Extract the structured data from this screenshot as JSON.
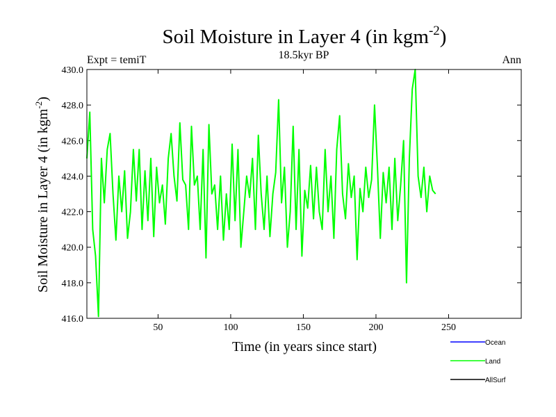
{
  "chart_data": {
    "type": "line",
    "title": "Soil Moisture in Layer 4 (in kgm",
    "title_sup": "-2",
    "title_close": ")",
    "subtitle_left": "Expt = temiT",
    "subtitle_center": "18.5kyr BP",
    "subtitle_right": "Ann",
    "xlabel": "Time (in years since start)",
    "ylabel": "Soil Moisture in Layer 4 (in kgm",
    "ylabel_sup": "-2",
    "ylabel_close": ")",
    "xlim": [
      1,
      300
    ],
    "ylim": [
      416.0,
      430.0
    ],
    "xticks": [
      50,
      100,
      150,
      200,
      250
    ],
    "xtick_labels": [
      "50",
      "100",
      "150",
      "200",
      "250"
    ],
    "yticks": [
      416,
      418,
      420,
      422,
      424,
      426,
      428,
      430
    ],
    "ytick_labels": [
      "416.0",
      "418.0",
      "420.0",
      "422.0",
      "424.0",
      "426.0",
      "428.0",
      "430.0"
    ],
    "series": [
      {
        "name": "Ocean",
        "color": "#0000ff",
        "values": []
      },
      {
        "name": "Land",
        "color": "#00ff00",
        "x_start": 1,
        "x_step": 2,
        "values": [
          425.0,
          427.6,
          421.0,
          419.5,
          416.1,
          425.0,
          422.5,
          425.5,
          426.4,
          423.0,
          420.4,
          424.0,
          422.0,
          424.3,
          420.5,
          422.0,
          425.5,
          422.6,
          425.5,
          421.0,
          424.3,
          421.5,
          425.0,
          420.6,
          424.5,
          422.5,
          423.5,
          421.3,
          425.0,
          426.4,
          424.0,
          422.6,
          427.0,
          423.8,
          423.5,
          421.0,
          426.8,
          423.5,
          424.0,
          421.0,
          425.5,
          419.4,
          426.9,
          423.0,
          423.5,
          421.0,
          424.0,
          420.4,
          423.0,
          421.0,
          425.8,
          421.5,
          425.5,
          420.0,
          422.0,
          424.0,
          422.8,
          425.0,
          421.0,
          426.3,
          423.0,
          421.0,
          424.0,
          420.6,
          423.0,
          424.2,
          428.3,
          422.5,
          424.5,
          420.0,
          422.0,
          426.8,
          421.0,
          425.5,
          419.5,
          423.2,
          422.2,
          424.6,
          421.6,
          424.5,
          422.0,
          421.0,
          425.5,
          422.0,
          424.0,
          420.5,
          425.5,
          427.4,
          423.0,
          421.6,
          424.7,
          422.8,
          424.0,
          419.3,
          423.3,
          422.0,
          424.5,
          422.8,
          423.8,
          428.0,
          424.5,
          420.5,
          424.2,
          422.5,
          424.5,
          421.0,
          425.0,
          421.5,
          423.5,
          426.0,
          418.0,
          425.0,
          428.9,
          430.0,
          424.0,
          422.8,
          424.5,
          422.0,
          424.0,
          423.2,
          423.0
        ]
      },
      {
        "name": "AllSurf",
        "color": "#000000",
        "values": []
      }
    ],
    "legend_position": "bottom-right"
  }
}
